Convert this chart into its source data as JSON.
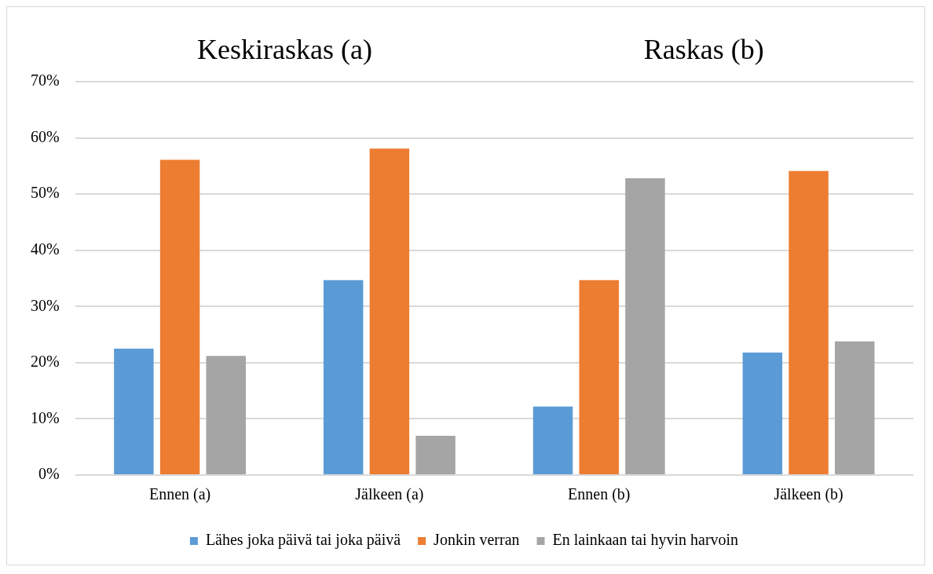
{
  "chart_data": {
    "type": "bar",
    "categories": [
      "Ennen (a)",
      "Jälkeen (a)",
      "Ennen (b)",
      "Jälkeen (b)"
    ],
    "series": [
      {
        "name": "Lähes joka päivä tai joka päivä",
        "color": "#5b9bd5",
        "values": [
          22.5,
          34.7,
          12.2,
          21.8
        ]
      },
      {
        "name": "Jonkin verran",
        "color": "#ed7d31",
        "values": [
          56.1,
          58.1,
          34.7,
          54.1
        ]
      },
      {
        "name": "En lainkaan tai hyvin harvoin",
        "color": "#a5a5a5",
        "values": [
          21.2,
          7.0,
          52.8,
          23.8
        ]
      }
    ],
    "annotations": [
      "Keskiraskas (a)",
      "Raskas (b)"
    ],
    "ylim": [
      0,
      70
    ],
    "yticks": [
      {
        "value": 0,
        "label": "0%"
      },
      {
        "value": 10,
        "label": "10%"
      },
      {
        "value": 20,
        "label": "20%"
      },
      {
        "value": 30,
        "label": "30%"
      },
      {
        "value": 40,
        "label": "40%"
      },
      {
        "value": 50,
        "label": "50%"
      },
      {
        "value": 60,
        "label": "60%"
      },
      {
        "value": 70,
        "label": "70%"
      }
    ],
    "grid": "y",
    "legend": "bottom"
  }
}
